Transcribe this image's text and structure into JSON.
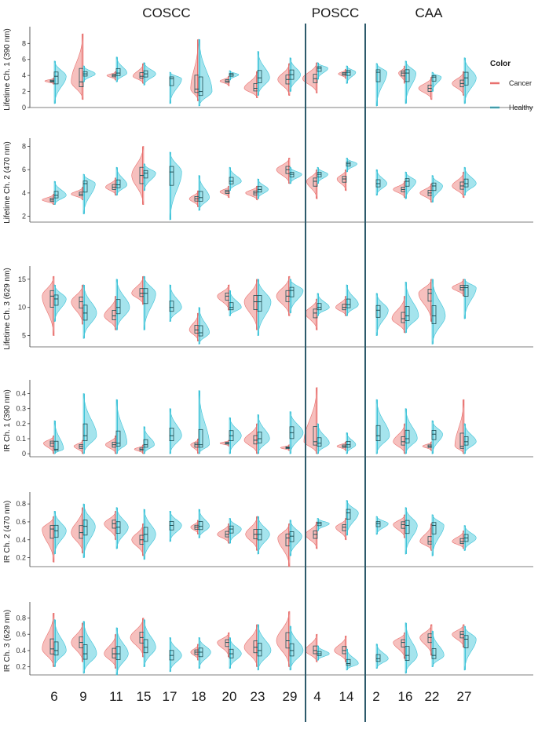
{
  "chart_data": {
    "type": "violin",
    "groups": [
      {
        "label": "COSCC",
        "samples": [
          "6",
          "9",
          "11",
          "15",
          "17",
          "18",
          "20",
          "23",
          "29"
        ]
      },
      {
        "label": "POSCC",
        "samples": [
          "4",
          "14"
        ]
      },
      {
        "label": "CAA",
        "samples": [
          "2",
          "16",
          "22",
          "27"
        ]
      }
    ],
    "categories": [
      "6",
      "9",
      "11",
      "15",
      "17",
      "18",
      "20",
      "23",
      "29",
      "4",
      "14",
      "2",
      "16",
      "22",
      "27"
    ],
    "legend": {
      "title": "Color",
      "entries": [
        {
          "name": "Cancer",
          "color": "#E8706E"
        },
        {
          "name": "Healthy",
          "color": "#3CC3D8"
        }
      ]
    },
    "colors": {
      "cancer_fill": "#F2A5A3",
      "healthy_fill": "#7FD9E6",
      "box_line": "#1f4f55",
      "divider": "#2d5a6b"
    },
    "panels": [
      {
        "ylabel": "Lifetime Ch. 1 (390 nm)",
        "ylim": [
          0,
          9.5
        ],
        "yticks": [
          0,
          2,
          4,
          6,
          8
        ],
        "cancer": [
          [
            3.3,
            2.9,
            3.7,
            0.35
          ],
          [
            3.2,
            1.0,
            9.2,
            0.45
          ],
          [
            4.0,
            3.4,
            4.5,
            0.35
          ],
          [
            3.9,
            3.0,
            5.5,
            0.4
          ],
          null,
          [
            2.3,
            0.8,
            8.5,
            0.3
          ],
          [
            3.3,
            2.7,
            3.9,
            0.35
          ],
          [
            2.4,
            1.2,
            4.5,
            0.5
          ],
          [
            3.5,
            1.5,
            5.5,
            0.45
          ],
          [
            3.6,
            1.8,
            5.6,
            0.55
          ],
          [
            4.2,
            3.6,
            4.8,
            0.3
          ],
          null,
          [
            4.3,
            3.0,
            5.2,
            0.25
          ],
          [
            2.4,
            1.0,
            3.8,
            0.5
          ],
          [
            3.0,
            1.5,
            4.5,
            0.45
          ]
        ],
        "healthy": [
          [
            3.9,
            0.5,
            5.8,
            0.45
          ],
          [
            4.2,
            3.2,
            5.2,
            0.45
          ],
          [
            4.3,
            3.2,
            6.3,
            0.4
          ],
          [
            4.2,
            2.8,
            5.6,
            0.45
          ],
          [
            3.6,
            0.5,
            4.4,
            0.45
          ],
          [
            2.0,
            0.2,
            8.5,
            0.5
          ],
          [
            4.1,
            3.4,
            4.6,
            0.35
          ],
          [
            3.7,
            1.5,
            7.0,
            0.45
          ],
          [
            4.1,
            2.0,
            6.2,
            0.4
          ],
          [
            4.9,
            3.5,
            5.6,
            0.4
          ],
          [
            4.4,
            3.0,
            5.2,
            0.35
          ],
          [
            4.4,
            0.2,
            5.5,
            0.4
          ],
          [
            4.3,
            0.5,
            5.8,
            0.4
          ],
          [
            3.8,
            2.0,
            4.4,
            0.35
          ],
          [
            3.7,
            0.5,
            6.2,
            0.45
          ]
        ]
      },
      {
        "ylabel": "Lifetime Ch. 2 (470 nm)",
        "ylim": [
          1.5,
          8.3
        ],
        "yticks": [
          2,
          4,
          6,
          8
        ],
        "cancer": [
          [
            3.4,
            3.0,
            3.9,
            0.45
          ],
          [
            3.9,
            3.4,
            4.5,
            0.45
          ],
          [
            4.5,
            3.8,
            5.3,
            0.4
          ],
          [
            5.5,
            3.0,
            8.0,
            0.45
          ],
          null,
          [
            3.5,
            2.8,
            4.2,
            0.35
          ],
          [
            4.1,
            3.6,
            4.6,
            0.35
          ],
          [
            4.0,
            3.4,
            4.6,
            0.45
          ],
          [
            6.0,
            4.8,
            7.0,
            0.5
          ],
          [
            5.0,
            3.5,
            6.0,
            0.4
          ],
          [
            5.2,
            4.2,
            6.0,
            0.35
          ],
          null,
          [
            4.3,
            3.6,
            5.0,
            0.45
          ],
          [
            4.0,
            3.2,
            4.8,
            0.45
          ],
          [
            4.6,
            3.6,
            5.8,
            0.45
          ]
        ],
        "healthy": [
          [
            3.8,
            3.0,
            5.0,
            0.45
          ],
          [
            4.8,
            2.2,
            5.6,
            0.45
          ],
          [
            4.7,
            3.8,
            6.2,
            0.4
          ],
          [
            5.7,
            4.2,
            6.5,
            0.45
          ],
          [
            5.8,
            1.7,
            7.5,
            0.45
          ],
          [
            3.6,
            2.5,
            5.5,
            0.4
          ],
          [
            5.0,
            4.2,
            6.2,
            0.45
          ],
          [
            4.3,
            3.5,
            5.2,
            0.4
          ],
          [
            5.6,
            4.8,
            6.2,
            0.45
          ],
          [
            5.6,
            4.8,
            6.2,
            0.4
          ],
          [
            6.5,
            5.8,
            7.0,
            0.4
          ],
          [
            4.8,
            3.8,
            6.0,
            0.4
          ],
          [
            5.0,
            3.5,
            5.8,
            0.4
          ],
          [
            4.6,
            3.2,
            5.5,
            0.4
          ],
          [
            4.8,
            3.8,
            6.2,
            0.45
          ]
        ]
      },
      {
        "ylabel": "Lifetime Ch. 3 (629 nm)",
        "ylim": [
          3,
          16.5
        ],
        "yticks": [
          5,
          10,
          15
        ],
        "cancer": [
          [
            12.0,
            5.0,
            15.5,
            0.45
          ],
          [
            11.0,
            7.0,
            14.0,
            0.45
          ],
          [
            8.5,
            6.0,
            12.0,
            0.45
          ],
          [
            12.5,
            10.5,
            15.5,
            0.45
          ],
          null,
          [
            6.0,
            4.0,
            9.0,
            0.35
          ],
          [
            12.0,
            9.5,
            14.0,
            0.45
          ],
          [
            11.0,
            6.0,
            15.0,
            0.5
          ],
          [
            12.0,
            8.5,
            15.5,
            0.5
          ],
          [
            9.0,
            6.0,
            11.5,
            0.45
          ],
          [
            10.0,
            8.5,
            12.0,
            0.4
          ],
          null,
          [
            8.0,
            5.5,
            12.0,
            0.5
          ],
          [
            12.5,
            7.5,
            15.0,
            0.5
          ],
          [
            13.5,
            12.0,
            15.0,
            0.45
          ]
        ],
        "healthy": [
          [
            11.5,
            7.5,
            14.0,
            0.45
          ],
          [
            9.0,
            4.5,
            14.0,
            0.5
          ],
          [
            10.0,
            6.0,
            15.0,
            0.5
          ],
          [
            12.5,
            6.0,
            15.5,
            0.45
          ],
          [
            10.0,
            7.5,
            14.0,
            0.45
          ],
          [
            5.5,
            3.5,
            10.0,
            0.4
          ],
          [
            10.0,
            8.5,
            13.0,
            0.45
          ],
          [
            11.0,
            5.0,
            15.0,
            0.5
          ],
          [
            13.0,
            9.0,
            15.0,
            0.5
          ],
          [
            10.0,
            8.5,
            12.5,
            0.45
          ],
          [
            10.5,
            8.5,
            14.0,
            0.45
          ],
          [
            9.5,
            5.0,
            12.5,
            0.45
          ],
          [
            8.5,
            5.5,
            14.5,
            0.5
          ],
          [
            8.5,
            3.5,
            15.0,
            0.5
          ],
          [
            13.5,
            8.0,
            15.0,
            0.45
          ]
        ]
      },
      {
        "ylabel": "IR Ch. 1 (390 nm)",
        "ylim": [
          -0.02,
          0.46
        ],
        "yticks": [
          0,
          0.1,
          0.2,
          0.3,
          0.4
        ],
        "cancer": [
          [
            0.07,
            0.0,
            0.12,
            0.4
          ],
          [
            0.05,
            0.0,
            0.09,
            0.35
          ],
          [
            0.06,
            0.0,
            0.12,
            0.4
          ],
          [
            0.03,
            0.0,
            0.06,
            0.35
          ],
          null,
          [
            0.06,
            0.0,
            0.1,
            0.3
          ],
          [
            0.07,
            0.05,
            0.09,
            0.35
          ],
          [
            0.09,
            0.0,
            0.2,
            0.5
          ],
          [
            0.04,
            0.02,
            0.06,
            0.35
          ],
          [
            0.08,
            0.0,
            0.44,
            0.5
          ],
          [
            0.05,
            0.02,
            0.08,
            0.35
          ],
          null,
          [
            0.08,
            0.0,
            0.2,
            0.45
          ],
          [
            0.05,
            0.02,
            0.08,
            0.35
          ],
          [
            0.05,
            0.0,
            0.36,
            0.35
          ]
        ],
        "healthy": [
          [
            0.03,
            0.0,
            0.22,
            0.35
          ],
          [
            0.12,
            0.0,
            0.4,
            0.5
          ],
          [
            0.07,
            0.0,
            0.36,
            0.4
          ],
          [
            0.06,
            0.0,
            0.18,
            0.4
          ],
          [
            0.12,
            0.0,
            0.3,
            0.45
          ],
          [
            0.06,
            0.0,
            0.42,
            0.4
          ],
          [
            0.12,
            0.0,
            0.24,
            0.45
          ],
          [
            0.1,
            0.0,
            0.26,
            0.45
          ],
          [
            0.14,
            0.0,
            0.28,
            0.5
          ],
          [
            0.07,
            0.0,
            0.2,
            0.45
          ],
          [
            0.06,
            0.0,
            0.14,
            0.35
          ],
          [
            0.12,
            0.0,
            0.36,
            0.5
          ],
          [
            0.1,
            0.0,
            0.3,
            0.45
          ],
          [
            0.13,
            0.0,
            0.22,
            0.4
          ],
          [
            0.08,
            0.0,
            0.2,
            0.45
          ]
        ]
      },
      {
        "ylabel": "IR Ch. 2 (470 nm)",
        "ylim": [
          0.1,
          0.88
        ],
        "yticks": [
          0.2,
          0.4,
          0.6,
          0.8
        ],
        "cancer": [
          [
            0.52,
            0.15,
            0.66,
            0.45
          ],
          [
            0.48,
            0.25,
            0.76,
            0.45
          ],
          [
            0.58,
            0.4,
            0.72,
            0.45
          ],
          [
            0.4,
            0.22,
            0.58,
            0.45
          ],
          null,
          [
            0.54,
            0.46,
            0.62,
            0.3
          ],
          [
            0.46,
            0.36,
            0.58,
            0.45
          ],
          [
            0.46,
            0.28,
            0.66,
            0.45
          ],
          [
            0.42,
            0.1,
            0.58,
            0.45
          ],
          [
            0.46,
            0.3,
            0.6,
            0.45
          ],
          [
            0.54,
            0.4,
            0.64,
            0.4
          ],
          null,
          [
            0.57,
            0.42,
            0.68,
            0.45
          ],
          [
            0.38,
            0.28,
            0.58,
            0.45
          ],
          [
            0.38,
            0.3,
            0.5,
            0.45
          ]
        ],
        "healthy": [
          [
            0.5,
            0.24,
            0.72,
            0.45
          ],
          [
            0.55,
            0.2,
            0.8,
            0.45
          ],
          [
            0.54,
            0.3,
            0.76,
            0.45
          ],
          [
            0.46,
            0.18,
            0.74,
            0.45
          ],
          [
            0.56,
            0.38,
            0.72,
            0.45
          ],
          [
            0.55,
            0.42,
            0.74,
            0.4
          ],
          [
            0.52,
            0.36,
            0.64,
            0.45
          ],
          [
            0.46,
            0.24,
            0.66,
            0.45
          ],
          [
            0.44,
            0.22,
            0.62,
            0.45
          ],
          [
            0.58,
            0.5,
            0.64,
            0.45
          ],
          [
            0.7,
            0.45,
            0.84,
            0.45
          ],
          [
            0.58,
            0.46,
            0.66,
            0.45
          ],
          [
            0.56,
            0.24,
            0.76,
            0.45
          ],
          [
            0.56,
            0.22,
            0.68,
            0.45
          ],
          [
            0.42,
            0.28,
            0.56,
            0.45
          ]
        ]
      },
      {
        "ylabel": "IR Ch. 3 (629 nm)",
        "ylim": [
          0.1,
          0.94
        ],
        "yticks": [
          0.2,
          0.4,
          0.6,
          0.8
        ],
        "cancer": [
          [
            0.42,
            0.2,
            0.86,
            0.45
          ],
          [
            0.5,
            0.26,
            0.74,
            0.45
          ],
          [
            0.36,
            0.18,
            0.6,
            0.45
          ],
          [
            0.56,
            0.32,
            0.8,
            0.5
          ],
          null,
          [
            0.38,
            0.28,
            0.48,
            0.3
          ],
          [
            0.5,
            0.32,
            0.62,
            0.45
          ],
          [
            0.44,
            0.2,
            0.72,
            0.5
          ],
          [
            0.52,
            0.2,
            0.88,
            0.5
          ],
          [
            0.4,
            0.26,
            0.6,
            0.45
          ],
          [
            0.4,
            0.26,
            0.58,
            0.45
          ],
          null,
          [
            0.5,
            0.3,
            0.62,
            0.45
          ],
          [
            0.56,
            0.34,
            0.72,
            0.45
          ],
          [
            0.6,
            0.44,
            0.72,
            0.45
          ]
        ],
        "healthy": [
          [
            0.4,
            0.2,
            0.78,
            0.45
          ],
          [
            0.36,
            0.12,
            0.76,
            0.5
          ],
          [
            0.36,
            0.1,
            0.68,
            0.45
          ],
          [
            0.44,
            0.2,
            0.78,
            0.45
          ],
          [
            0.34,
            0.14,
            0.56,
            0.45
          ],
          [
            0.38,
            0.18,
            0.56,
            0.45
          ],
          [
            0.36,
            0.18,
            0.56,
            0.45
          ],
          [
            0.4,
            0.16,
            0.72,
            0.5
          ],
          [
            0.4,
            0.16,
            0.7,
            0.5
          ],
          [
            0.36,
            0.28,
            0.46,
            0.45
          ],
          [
            0.24,
            0.16,
            0.42,
            0.45
          ],
          [
            0.3,
            0.18,
            0.48,
            0.45
          ],
          [
            0.34,
            0.12,
            0.74,
            0.45
          ],
          [
            0.34,
            0.2,
            0.64,
            0.45
          ],
          [
            0.54,
            0.16,
            0.7,
            0.45
          ]
        ]
      }
    ]
  }
}
